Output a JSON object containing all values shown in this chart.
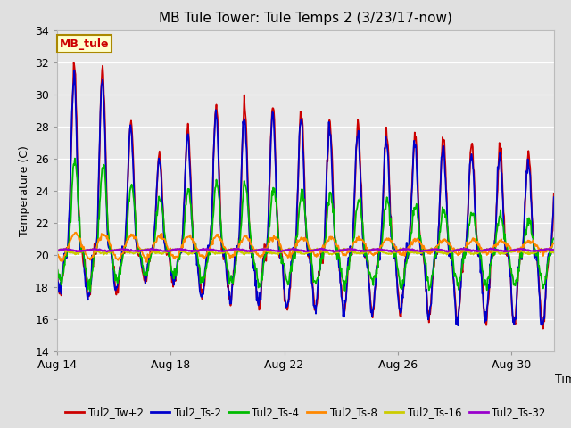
{
  "title": "MB Tule Tower: Tule Temps 2 (3/23/17-now)",
  "xlabel": "Time",
  "ylabel": "Temperature (C)",
  "ylim": [
    14,
    34
  ],
  "yticks": [
    14,
    16,
    18,
    20,
    22,
    24,
    26,
    28,
    30,
    32,
    34
  ],
  "fig_bg_color": "#e0e0e0",
  "plot_bg_color": "#e8e8e8",
  "grid_color": "#ffffff",
  "annotation_text": "MB_tule",
  "annotation_color": "#cc0000",
  "annotation_bg": "#ffffcc",
  "annotation_border": "#aa8800",
  "xticklabels": [
    "Aug 14",
    "Aug 18",
    "Aug 22",
    "Aug 26",
    "Aug 30"
  ],
  "xtick_positions": [
    0,
    4,
    8,
    12,
    16
  ],
  "xlim": [
    0,
    17.5
  ],
  "series_colors": {
    "Tul2_Tw+2": "#cc0000",
    "Tul2_Ts-2": "#0000cc",
    "Tul2_Ts-4": "#00bb00",
    "Tul2_Ts-8": "#ff8800",
    "Tul2_Ts-16": "#cccc00",
    "Tul2_Ts-32": "#9900cc"
  }
}
